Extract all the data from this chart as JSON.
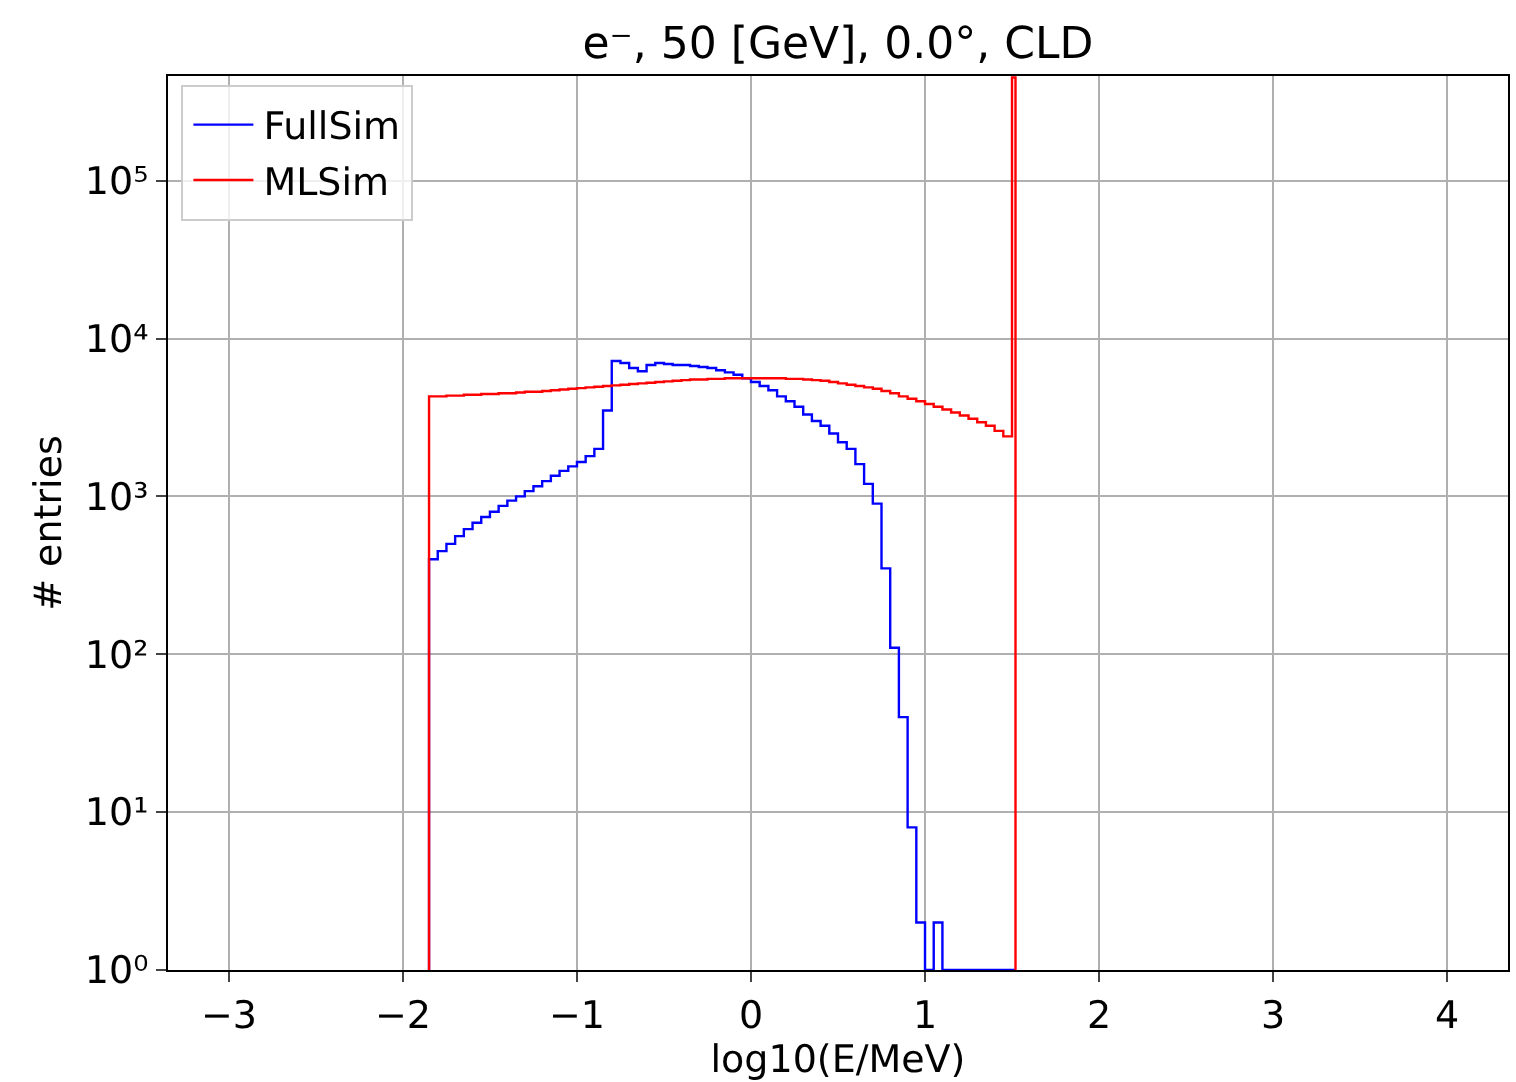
{
  "chart_data": {
    "type": "histogram",
    "title": "e⁻, 50 [GeV], 0.0°, CLD",
    "xlabel": "log10(E/MeV)",
    "ylabel": "# entries",
    "bins": [
      -1.85,
      -1.8,
      -1.75,
      -1.7,
      -1.65,
      -1.6,
      -1.55,
      -1.5,
      -1.45,
      -1.4,
      -1.35,
      -1.3,
      -1.25,
      -1.2,
      -1.15,
      -1.1,
      -1.05,
      -1.0,
      -0.95,
      -0.9,
      -0.85,
      -0.8,
      -0.75,
      -0.7,
      -0.65,
      -0.6,
      -0.55,
      -0.5,
      -0.45,
      -0.4,
      -0.35,
      -0.3,
      -0.25,
      -0.2,
      -0.15,
      -0.1,
      -0.05,
      0.0,
      0.05,
      0.1,
      0.15,
      0.2,
      0.25,
      0.3,
      0.35,
      0.4,
      0.45,
      0.5,
      0.55,
      0.6,
      0.65,
      0.7,
      0.75,
      0.8,
      0.85,
      0.9,
      0.95,
      1.0,
      1.05,
      1.1,
      1.15,
      1.2,
      1.25,
      1.3,
      1.35,
      1.4,
      1.45,
      1.5,
      1.52
    ],
    "series": [
      {
        "name": "FullSim",
        "color": "#0000ff",
        "values": [
          400,
          450,
          500,
          560,
          620,
          680,
          740,
          800,
          870,
          940,
          1000,
          1080,
          1160,
          1250,
          1350,
          1450,
          1550,
          1650,
          1800,
          2000,
          3500,
          7200,
          7000,
          6500,
          6200,
          6800,
          7000,
          6900,
          6800,
          6800,
          6700,
          6600,
          6500,
          6300,
          6100,
          5900,
          5600,
          5300,
          5000,
          4700,
          4300,
          4000,
          3700,
          3300,
          3000,
          2800,
          2500,
          2200,
          2000,
          1600,
          1200,
          900,
          350,
          110,
          40,
          8,
          2,
          null,
          2,
          null,
          null,
          null,
          null,
          null,
          null,
          null,
          null,
          null
        ]
      },
      {
        "name": "MLSim",
        "color": "#ff0000",
        "values": [
          4300,
          4300,
          4350,
          4350,
          4400,
          4400,
          4450,
          4450,
          4500,
          4500,
          4550,
          4600,
          4600,
          4650,
          4700,
          4750,
          4800,
          4850,
          4900,
          4950,
          5000,
          5050,
          5100,
          5150,
          5200,
          5250,
          5300,
          5350,
          5400,
          5450,
          5500,
          5500,
          5550,
          5550,
          5600,
          5600,
          5600,
          5600,
          5600,
          5600,
          5600,
          5550,
          5550,
          5500,
          5450,
          5400,
          5300,
          5200,
          5100,
          5000,
          4900,
          4800,
          4650,
          4500,
          4300,
          4150,
          4000,
          3850,
          3700,
          3550,
          3400,
          3250,
          3100,
          2950,
          2800,
          2600,
          2400,
          450000
        ]
      }
    ],
    "log": "y",
    "xlim": [
      -3.35,
      4.35
    ],
    "ylim": [
      1,
      460000
    ],
    "xticks": [
      {
        "value": -3,
        "label": "−3"
      },
      {
        "value": -2,
        "label": "−2"
      },
      {
        "value": -1,
        "label": "−1"
      },
      0,
      1,
      2,
      3,
      4
    ],
    "yticks": [
      {
        "value": 1,
        "label": "10⁰"
      },
      {
        "value": 10,
        "label": "10¹"
      },
      {
        "value": 100,
        "label": "10²"
      },
      {
        "value": 1000,
        "label": "10³"
      },
      {
        "value": 10000,
        "label": "10⁴"
      },
      {
        "value": 100000,
        "label": "10⁵"
      }
    ],
    "grid": true,
    "legend": "top left"
  }
}
